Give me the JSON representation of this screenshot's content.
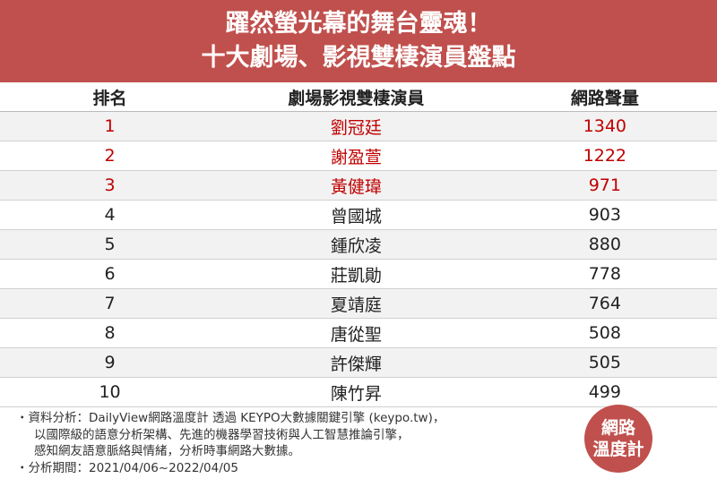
{
  "header": {
    "title": [
      "躍然螢光幕的舞台靈魂！",
      "十大劇場、影視雙棲演員盤點"
    ]
  },
  "table": {
    "columns": [
      "排名",
      "劇場影視雙棲演員",
      "網路聲量"
    ],
    "rows": [
      [
        1,
        "劉冠廷",
        1340
      ],
      [
        2,
        "謝盈萱",
        1222
      ],
      [
        3,
        "黃健瑋",
        971
      ],
      [
        4,
        "曾國城",
        903
      ],
      [
        5,
        "鍾欣凌",
        880
      ],
      [
        6,
        "莊凱勛",
        778
      ],
      [
        7,
        "夏靖庭",
        764
      ],
      [
        8,
        "唐從聖",
        508
      ],
      [
        9,
        "許傑輝",
        505
      ],
      [
        10,
        "陳竹昇",
        499
      ]
    ]
  },
  "notes": [
    "・資料分析：DailyView網路溫度計 透過 KEYPO大數據關鍵引擎 (keypo.tw)，",
    "以國際級的語意分析架構、先進的機器學習技術與人工智慧推論引擎，",
    "感知網友語意脈絡與情緒，分析時事網路大數據。",
    "・分析期間：2021/04/06~2022/04/05"
  ],
  "logo": {
    "lines": [
      "網路",
      "溫度計"
    ]
  }
}
